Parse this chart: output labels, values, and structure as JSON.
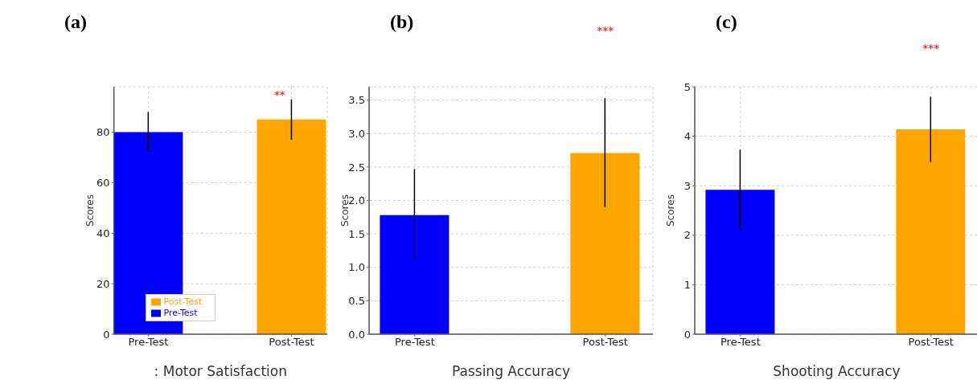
{
  "chart_data": [
    {
      "type": "bar",
      "title": "(a)",
      "xlabel": ": Motor Satisfaction",
      "ylabel": "Scores",
      "categories": [
        "Pre-Test",
        "Post-Test"
      ],
      "stacked": true,
      "series": [
        {
          "name": "Pre-Test",
          "color": "#0000ff",
          "values": [
            80,
            null
          ],
          "errors": [
            [
              72,
              88
            ],
            null
          ]
        },
        {
          "name": "Post-Test",
          "color": "#ffa500",
          "values": [
            null,
            85
          ],
          "errors": [
            null,
            [
              77,
              93
            ]
          ]
        }
      ],
      "ylim": [
        0,
        98
      ],
      "yticks": [
        0,
        20,
        40,
        60,
        80
      ],
      "grid": true,
      "legend": "bottom",
      "annotations": [
        "**"
      ]
    },
    {
      "type": "bar",
      "title": "(b)",
      "xlabel": "Passing Accuracy",
      "ylabel": "Scores",
      "categories": [
        "Pre-Test",
        "Post-Test"
      ],
      "values": [
        1.78,
        2.71
      ],
      "colors": [
        "#0000ff",
        "#ffa500"
      ],
      "errors": [
        [
          1.1,
          2.47
        ],
        [
          1.9,
          3.53
        ]
      ],
      "ylim": [
        0,
        3.7
      ],
      "yticks": [
        {
          "value": 0,
          "label": "0.0"
        },
        0.5,
        {
          "value": 1,
          "label": "1.0"
        },
        1.5,
        {
          "value": 2,
          "label": "2.0"
        },
        2.5,
        {
          "value": 3,
          "label": "3.0"
        },
        3.5
      ],
      "grid": true,
      "annotations": [
        "***"
      ]
    },
    {
      "type": "bar",
      "title": "(c)",
      "xlabel": "Shooting Accuracy",
      "ylabel": "Scores",
      "categories": [
        "Pre-Test",
        "Post-Test"
      ],
      "values": [
        2.92,
        4.14
      ],
      "colors": [
        "#0000ff",
        "#ffa500"
      ],
      "errors": [
        [
          2.1,
          3.73
        ],
        [
          3.48,
          4.8
        ]
      ],
      "ylim": [
        0,
        5
      ],
      "yticks": [
        0,
        1,
        2,
        3,
        4,
        5
      ],
      "grid": true,
      "annotations": [
        "***"
      ]
    }
  ]
}
